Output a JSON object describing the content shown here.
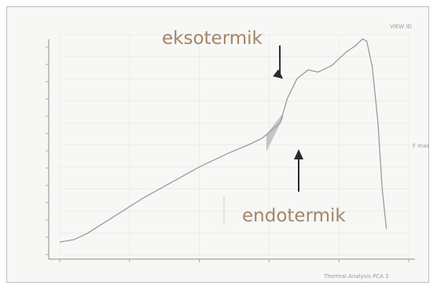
{
  "chart_data": {
    "type": "line",
    "title": "",
    "xlabel": "",
    "ylabel": "",
    "x_range": [
      0,
      250
    ],
    "y_range": [
      0,
      100
    ],
    "grid": true,
    "series": [
      {
        "x": [
          0,
          10,
          20,
          40,
          60,
          80,
          100,
          120,
          135,
          145,
          158,
          163,
          170,
          178,
          185,
          195,
          205,
          212,
          217,
          220,
          224,
          228,
          231,
          234
        ],
        "y": [
          6,
          7,
          10,
          18,
          26,
          33,
          40,
          46,
          50,
          53,
          60,
          71,
          80,
          84,
          83,
          86,
          92,
          95,
          98,
          97,
          85,
          60,
          30,
          12
        ]
      }
    ],
    "shaded_region": {
      "x_start": 148,
      "x_end": 160
    },
    "annotations": [
      {
        "text": "eksotermik",
        "target_x": 160,
        "target_y": 80
      },
      {
        "text": "endotermik",
        "target_x": 146,
        "target_y": 55
      }
    ],
    "right_marker_text": "F max"
  },
  "corner_texts": {
    "top_right": "VIEW ID",
    "bottom_right": "Thermal Analysis PCA 2"
  }
}
